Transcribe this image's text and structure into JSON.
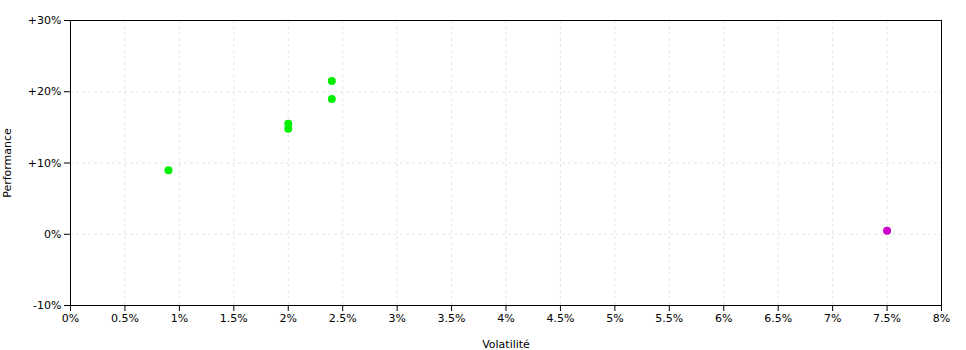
{
  "chart_data": {
    "type": "scatter",
    "xlabel": "Volatilité",
    "ylabel": "Performance",
    "series": [
      {
        "color": "#00ee00",
        "x": [
          0.009,
          0.02,
          0.02,
          0.024,
          0.024
        ],
        "values": [
          0.09,
          0.155,
          0.148,
          0.215,
          0.19
        ]
      },
      {
        "color": "#cc00cc",
        "x": [
          0.075
        ],
        "values": [
          0.005
        ]
      }
    ],
    "xlim": [
      0.0,
      0.08
    ],
    "ylim": [
      -0.1,
      0.3
    ],
    "xticks": [
      {
        "value": 0.0,
        "label": "0%"
      },
      {
        "value": 0.005,
        "label": "0.5%"
      },
      {
        "value": 0.01,
        "label": "1%"
      },
      {
        "value": 0.015,
        "label": "1.5%"
      },
      {
        "value": 0.02,
        "label": "2%"
      },
      {
        "value": 0.025,
        "label": "2.5%"
      },
      {
        "value": 0.03,
        "label": "3%"
      },
      {
        "value": 0.035,
        "label": "3.5%"
      },
      {
        "value": 0.04,
        "label": "4%"
      },
      {
        "value": 0.045,
        "label": "4.5%"
      },
      {
        "value": 0.05,
        "label": "5%"
      },
      {
        "value": 0.055,
        "label": "5.5%"
      },
      {
        "value": 0.06,
        "label": "6%"
      },
      {
        "value": 0.065,
        "label": "6.5%"
      },
      {
        "value": 0.07,
        "label": "7%"
      },
      {
        "value": 0.075,
        "label": "7.5%"
      },
      {
        "value": 0.08,
        "label": "8%"
      }
    ],
    "yticks": [
      {
        "value": -0.1,
        "label": "-10%"
      },
      {
        "value": 0.0,
        "label": "0%"
      },
      {
        "value": 0.1,
        "label": "+10%"
      },
      {
        "value": 0.2,
        "label": "+20%"
      },
      {
        "value": 0.3,
        "label": "+30%"
      }
    ],
    "grid": true
  }
}
